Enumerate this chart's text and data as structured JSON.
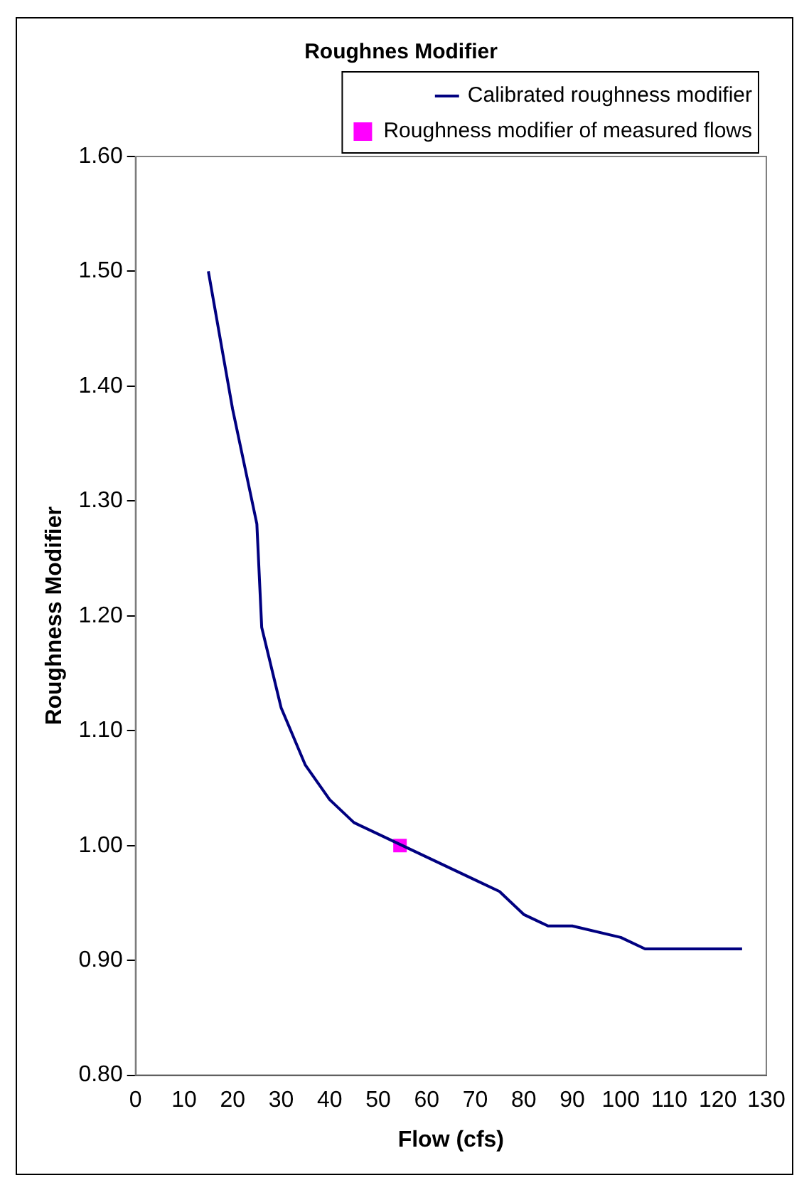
{
  "chart_data": {
    "type": "line",
    "title": "Roughnes Modifier",
    "xlabel": "Flow (cfs)",
    "ylabel": "Roughness Modifier",
    "xlim": [
      0,
      130
    ],
    "xticks": [
      0,
      10,
      20,
      30,
      40,
      50,
      60,
      70,
      80,
      90,
      100,
      110,
      120,
      130
    ],
    "ylim": [
      0.8,
      1.6
    ],
    "yticks": [
      {
        "value": 0.8,
        "label": "0.80"
      },
      {
        "value": 0.9,
        "label": "0.90"
      },
      {
        "value": 1.0,
        "label": "1.00"
      },
      {
        "value": 1.1,
        "label": "1.10"
      },
      {
        "value": 1.2,
        "label": "1.20"
      },
      {
        "value": 1.3,
        "label": "1.30"
      },
      {
        "value": 1.4,
        "label": "1.40"
      },
      {
        "value": 1.5,
        "label": "1.50"
      },
      {
        "value": 1.6,
        "label": "1.60"
      }
    ],
    "grid": false,
    "legend": "top right",
    "series": [
      {
        "name": "Calibrated roughness modifier",
        "type": "line",
        "color": "#000080",
        "marker": "none",
        "x": [
          15,
          20,
          25,
          26,
          30,
          35,
          40,
          45,
          60,
          70,
          75,
          80,
          85,
          90,
          100,
          105,
          120,
          125
        ],
        "values": [
          1.5,
          1.38,
          1.28,
          1.19,
          1.12,
          1.07,
          1.04,
          1.02,
          0.99,
          0.97,
          0.96,
          0.94,
          0.93,
          0.93,
          0.92,
          0.91,
          0.91,
          0.91
        ]
      },
      {
        "name": "Roughness modifier of measured flows",
        "type": "scatter",
        "color": "#ff00ff",
        "marker": "square",
        "x": [
          54.5
        ],
        "values": [
          1.0
        ]
      }
    ]
  }
}
